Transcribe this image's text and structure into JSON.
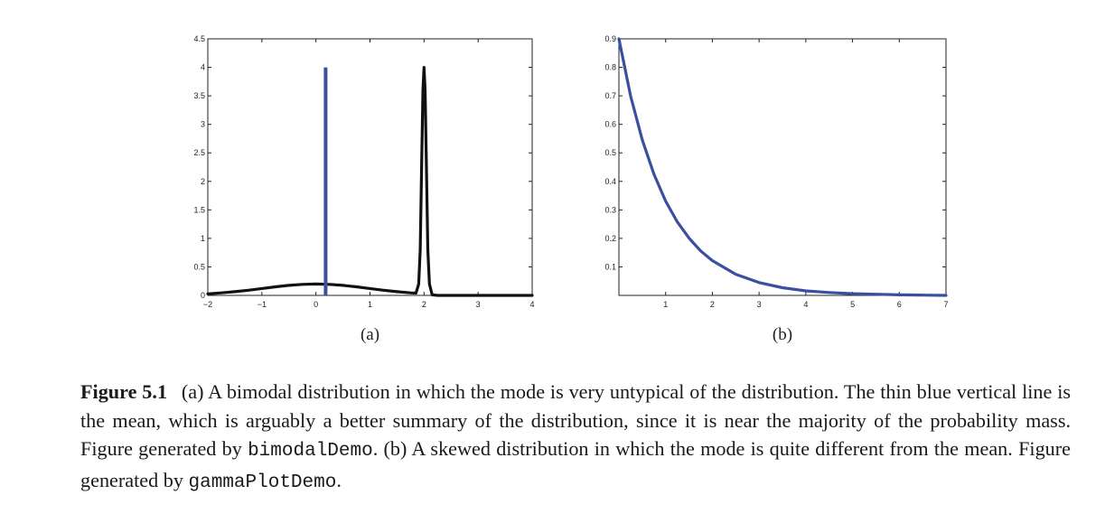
{
  "figure": {
    "caption": {
      "label": "Figure 5.1",
      "part1": "(a) A bimodal distribution in which the mode is very untypical of the distribution. The thin blue vertical line is the mean, which is arguably a better summary of the distribution, since it is near the majority of the probability mass. Figure generated by ",
      "code1": "bimodalDemo",
      "part2": ". (b) A skewed distribution in which the mode is quite different from the mean. Figure generated by ",
      "code2": "gammaPlotDemo",
      "part3": "."
    }
  },
  "chart_data": [
    {
      "type": "line",
      "panel_label": "(a)",
      "title": "",
      "xlabel": "",
      "ylabel": "",
      "xlim": [
        -2,
        4
      ],
      "ylim": [
        0,
        4.5
      ],
      "xticks": [
        -2,
        -1,
        0,
        1,
        2,
        3,
        4
      ],
      "xtick_labels": [
        "−2",
        "−1",
        "0",
        "1",
        "2",
        "3",
        "4"
      ],
      "yticks": [
        0,
        0.5,
        1,
        1.5,
        2,
        2.5,
        3,
        3.5,
        4,
        4.5
      ],
      "ytick_labels": [
        "0",
        "0.5",
        "1",
        "1.5",
        "2",
        "2.5",
        "3",
        "3.5",
        "4",
        "4.5"
      ],
      "series": [
        {
          "name": "density",
          "color": "#111111",
          "x": [
            -2.0,
            -1.75,
            -1.5,
            -1.25,
            -1.0,
            -0.75,
            -0.5,
            -0.25,
            0.0,
            0.25,
            0.5,
            0.75,
            1.0,
            1.25,
            1.5,
            1.75,
            1.85,
            1.9,
            1.93,
            1.96,
            1.98,
            2.0,
            2.02,
            2.04,
            2.07,
            2.1,
            2.15,
            2.25,
            2.5,
            3.0,
            3.5,
            4.0
          ],
          "y": [
            0.027,
            0.044,
            0.065,
            0.091,
            0.121,
            0.151,
            0.176,
            0.194,
            0.2,
            0.194,
            0.176,
            0.151,
            0.121,
            0.091,
            0.065,
            0.044,
            0.04,
            0.2,
            0.8,
            2.5,
            3.6,
            4.0,
            3.6,
            2.5,
            0.8,
            0.2,
            0.01,
            0.0,
            0.0,
            0.0,
            0.0,
            0.0
          ]
        },
        {
          "name": "mean",
          "color": "#3a4fa0",
          "x": [
            0.18,
            0.18
          ],
          "y": [
            0,
            4.0
          ]
        }
      ]
    },
    {
      "type": "line",
      "panel_label": "(b)",
      "title": "",
      "xlabel": "",
      "ylabel": "",
      "xlim": [
        0,
        7
      ],
      "ylim": [
        0,
        0.9
      ],
      "xticks": [
        1,
        2,
        3,
        4,
        5,
        6,
        7
      ],
      "xtick_labels": [
        "1",
        "2",
        "3",
        "4",
        "5",
        "6",
        "7"
      ],
      "yticks": [
        0.1,
        0.2,
        0.3,
        0.4,
        0.5,
        0.6,
        0.7,
        0.8,
        0.9
      ],
      "ytick_labels": [
        "0.1",
        "0.2",
        "0.3",
        "0.4",
        "0.5",
        "0.6",
        "0.7",
        "0.8",
        "0.9"
      ],
      "series": [
        {
          "name": "density",
          "color": "#3a4fa0",
          "x": [
            0.0,
            0.25,
            0.5,
            0.75,
            1.0,
            1.25,
            1.5,
            1.75,
            2.0,
            2.5,
            3.0,
            3.5,
            4.0,
            4.5,
            5.0,
            5.5,
            6.0,
            6.5,
            7.0
          ],
          "y": [
            0.9,
            0.7,
            0.545,
            0.425,
            0.331,
            0.258,
            0.201,
            0.156,
            0.122,
            0.074,
            0.045,
            0.027,
            0.016,
            0.01,
            0.006,
            0.004,
            0.002,
            0.001,
            0.0
          ]
        }
      ]
    }
  ]
}
